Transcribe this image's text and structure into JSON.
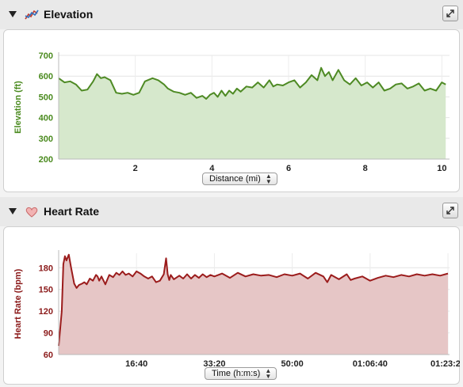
{
  "panels": [
    {
      "title": "Elevation",
      "icon": "elevation-chart-icon",
      "selector": {
        "value": "Distance (mi)"
      }
    },
    {
      "title": "Heart Rate",
      "icon": "heart-icon",
      "selector": {
        "value": "Time (h:m:s)"
      }
    }
  ],
  "colors": {
    "elevation_line": "#4e8a24",
    "elevation_fill": "#d6e8cc",
    "elevation_axis": "#4a8a1e",
    "hr_line": "#9b1c1c",
    "hr_fill": "#e6c6c6",
    "hr_axis": "#8b1a1a"
  },
  "chart_data": [
    {
      "type": "area",
      "title": "Elevation",
      "xlabel": "",
      "ylabel": "Elevation (ft)",
      "xlim": [
        0,
        10.2
      ],
      "ylim": [
        200,
        700
      ],
      "xticks": [
        2,
        4,
        6,
        8,
        10
      ],
      "xtick_labels": [
        "2",
        "4",
        "6",
        "8",
        "10"
      ],
      "yticks": [
        200,
        300,
        400,
        500,
        600,
        700
      ],
      "ytick_labels": [
        "200",
        "300",
        "400",
        "500",
        "600",
        "700"
      ],
      "grid": true,
      "x": [
        0.0,
        0.15,
        0.3,
        0.45,
        0.6,
        0.75,
        0.9,
        1.0,
        1.1,
        1.2,
        1.35,
        1.5,
        1.65,
        1.8,
        1.95,
        2.1,
        2.25,
        2.45,
        2.6,
        2.75,
        2.85,
        3.0,
        3.15,
        3.3,
        3.45,
        3.6,
        3.75,
        3.85,
        3.95,
        4.05,
        4.15,
        4.25,
        4.35,
        4.45,
        4.55,
        4.65,
        4.75,
        4.9,
        5.05,
        5.2,
        5.35,
        5.5,
        5.6,
        5.7,
        5.85,
        6.0,
        6.15,
        6.3,
        6.45,
        6.6,
        6.75,
        6.85,
        6.95,
        7.05,
        7.15,
        7.3,
        7.45,
        7.6,
        7.75,
        7.9,
        8.05,
        8.2,
        8.35,
        8.5,
        8.65,
        8.8,
        8.95,
        9.1,
        9.25,
        9.4,
        9.55,
        9.7,
        9.85,
        10.0,
        10.1
      ],
      "y": [
        590,
        570,
        575,
        560,
        530,
        535,
        575,
        610,
        590,
        595,
        580,
        520,
        515,
        520,
        510,
        520,
        575,
        590,
        580,
        560,
        540,
        525,
        520,
        510,
        520,
        495,
        505,
        490,
        510,
        520,
        500,
        530,
        505,
        530,
        515,
        540,
        525,
        550,
        545,
        570,
        545,
        580,
        550,
        560,
        555,
        570,
        580,
        545,
        570,
        605,
        580,
        640,
        600,
        620,
        580,
        630,
        580,
        560,
        590,
        555,
        570,
        545,
        570,
        530,
        540,
        560,
        565,
        540,
        550,
        565,
        530,
        540,
        530,
        570,
        560
      ]
    },
    {
      "type": "area",
      "title": "Heart Rate",
      "xlabel": "",
      "ylabel": "Heart Rate (bpm)",
      "xlim": [
        0,
        5020
      ],
      "ylim": [
        60,
        200
      ],
      "xticks": [
        1000,
        2000,
        3000,
        4000,
        5000
      ],
      "xtick_labels": [
        "16:40",
        "33:20",
        "50:00",
        "01:06:40",
        "01:23:20"
      ],
      "yticks": [
        60,
        90,
        120,
        150,
        180
      ],
      "ytick_labels": [
        "60",
        "90",
        "120",
        "150",
        "180"
      ],
      "grid": true,
      "x": [
        0,
        40,
        60,
        80,
        100,
        130,
        160,
        200,
        230,
        260,
        300,
        330,
        360,
        400,
        440,
        480,
        500,
        520,
        550,
        600,
        650,
        700,
        740,
        780,
        820,
        860,
        900,
        950,
        1000,
        1050,
        1100,
        1150,
        1200,
        1250,
        1300,
        1350,
        1380,
        1400,
        1420,
        1440,
        1480,
        1550,
        1600,
        1650,
        1700,
        1750,
        1800,
        1850,
        1900,
        1950,
        2000,
        2100,
        2200,
        2300,
        2400,
        2500,
        2600,
        2700,
        2800,
        2900,
        3000,
        3100,
        3200,
        3300,
        3400,
        3450,
        3500,
        3600,
        3700,
        3750,
        3800,
        3900,
        4000,
        4100,
        4200,
        4300,
        4400,
        4500,
        4600,
        4700,
        4800,
        4900,
        5000
      ],
      "y": [
        72,
        120,
        185,
        196,
        190,
        198,
        180,
        158,
        152,
        156,
        158,
        160,
        157,
        165,
        162,
        170,
        168,
        162,
        168,
        157,
        170,
        167,
        173,
        170,
        175,
        170,
        172,
        168,
        175,
        172,
        168,
        165,
        168,
        160,
        162,
        171,
        193,
        171,
        163,
        170,
        164,
        169,
        165,
        171,
        165,
        170,
        166,
        171,
        167,
        170,
        168,
        172,
        166,
        173,
        168,
        171,
        169,
        170,
        167,
        171,
        169,
        172,
        165,
        173,
        168,
        160,
        170,
        164,
        171,
        163,
        165,
        168,
        162,
        166,
        169,
        167,
        170,
        168,
        171,
        169,
        171,
        169,
        172
      ]
    }
  ]
}
